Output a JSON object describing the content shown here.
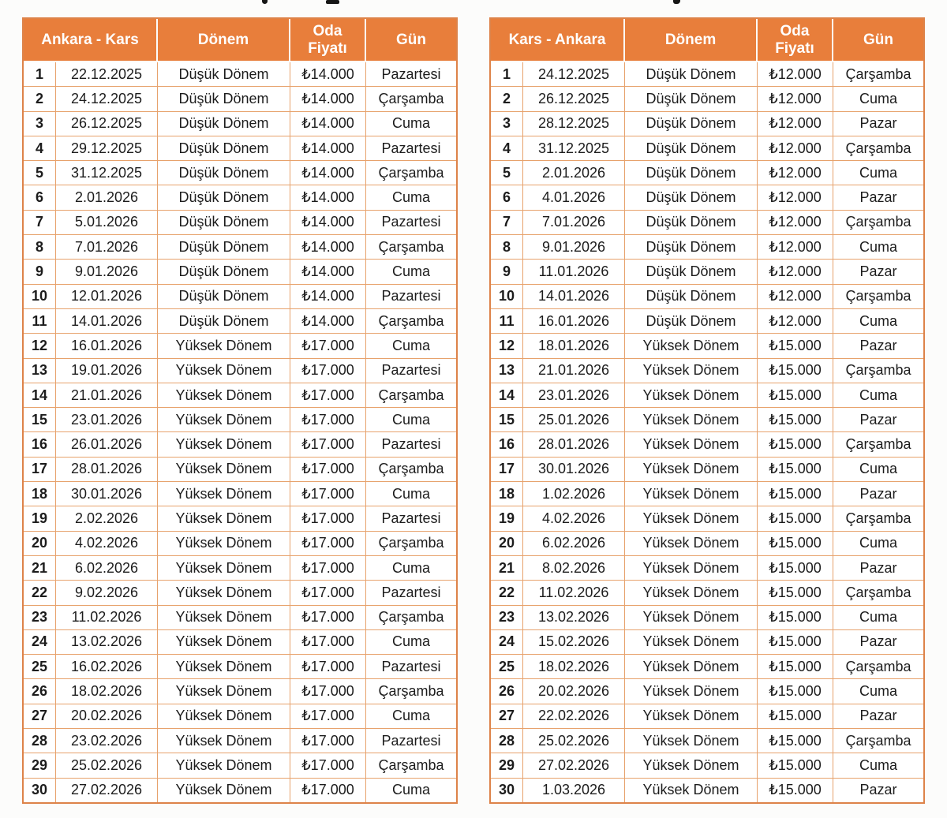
{
  "colors": {
    "header_bg": "#E87E3B",
    "header_text": "#FFFFFF",
    "outer_border": "#DD8349",
    "cell_border": "#E7A26C",
    "body_text": "#1C1C1C",
    "page_bg": "#FCFCFB"
  },
  "chart_data": [
    {
      "type": "table",
      "title": "Ankara - Kars",
      "headers": {
        "route": "Ankara - Kars",
        "period": "Dönem",
        "price": "Oda\nFiyatı",
        "day": "Gün"
      },
      "rows": [
        {
          "no": "1",
          "date": "22.12.2025",
          "period": "Düşük Dönem",
          "price": "₺14.000",
          "day": "Pazartesi"
        },
        {
          "no": "2",
          "date": "24.12.2025",
          "period": "Düşük Dönem",
          "price": "₺14.000",
          "day": "Çarşamba"
        },
        {
          "no": "3",
          "date": "26.12.2025",
          "period": "Düşük Dönem",
          "price": "₺14.000",
          "day": "Cuma"
        },
        {
          "no": "4",
          "date": "29.12.2025",
          "period": "Düşük Dönem",
          "price": "₺14.000",
          "day": "Pazartesi"
        },
        {
          "no": "5",
          "date": "31.12.2025",
          "period": "Düşük Dönem",
          "price": "₺14.000",
          "day": "Çarşamba"
        },
        {
          "no": "6",
          "date": "2.01.2026",
          "period": "Düşük Dönem",
          "price": "₺14.000",
          "day": "Cuma"
        },
        {
          "no": "7",
          "date": "5.01.2026",
          "period": "Düşük Dönem",
          "price": "₺14.000",
          "day": "Pazartesi"
        },
        {
          "no": "8",
          "date": "7.01.2026",
          "period": "Düşük Dönem",
          "price": "₺14.000",
          "day": "Çarşamba"
        },
        {
          "no": "9",
          "date": "9.01.2026",
          "period": "Düşük Dönem",
          "price": "₺14.000",
          "day": "Cuma"
        },
        {
          "no": "10",
          "date": "12.01.2026",
          "period": "Düşük Dönem",
          "price": "₺14.000",
          "day": "Pazartesi"
        },
        {
          "no": "11",
          "date": "14.01.2026",
          "period": "Düşük Dönem",
          "price": "₺14.000",
          "day": "Çarşamba"
        },
        {
          "no": "12",
          "date": "16.01.2026",
          "period": "Yüksek Dönem",
          "price": "₺17.000",
          "day": "Cuma"
        },
        {
          "no": "13",
          "date": "19.01.2026",
          "period": "Yüksek Dönem",
          "price": "₺17.000",
          "day": "Pazartesi"
        },
        {
          "no": "14",
          "date": "21.01.2026",
          "period": "Yüksek Dönem",
          "price": "₺17.000",
          "day": "Çarşamba"
        },
        {
          "no": "15",
          "date": "23.01.2026",
          "period": "Yüksek Dönem",
          "price": "₺17.000",
          "day": "Cuma"
        },
        {
          "no": "16",
          "date": "26.01.2026",
          "period": "Yüksek Dönem",
          "price": "₺17.000",
          "day": "Pazartesi"
        },
        {
          "no": "17",
          "date": "28.01.2026",
          "period": "Yüksek Dönem",
          "price": "₺17.000",
          "day": "Çarşamba"
        },
        {
          "no": "18",
          "date": "30.01.2026",
          "period": "Yüksek Dönem",
          "price": "₺17.000",
          "day": "Cuma"
        },
        {
          "no": "19",
          "date": "2.02.2026",
          "period": "Yüksek Dönem",
          "price": "₺17.000",
          "day": "Pazartesi"
        },
        {
          "no": "20",
          "date": "4.02.2026",
          "period": "Yüksek Dönem",
          "price": "₺17.000",
          "day": "Çarşamba"
        },
        {
          "no": "21",
          "date": "6.02.2026",
          "period": "Yüksek Dönem",
          "price": "₺17.000",
          "day": "Cuma"
        },
        {
          "no": "22",
          "date": "9.02.2026",
          "period": "Yüksek Dönem",
          "price": "₺17.000",
          "day": "Pazartesi"
        },
        {
          "no": "23",
          "date": "11.02.2026",
          "period": "Yüksek Dönem",
          "price": "₺17.000",
          "day": "Çarşamba"
        },
        {
          "no": "24",
          "date": "13.02.2026",
          "period": "Yüksek Dönem",
          "price": "₺17.000",
          "day": "Cuma"
        },
        {
          "no": "25",
          "date": "16.02.2026",
          "period": "Yüksek Dönem",
          "price": "₺17.000",
          "day": "Pazartesi"
        },
        {
          "no": "26",
          "date": "18.02.2026",
          "period": "Yüksek Dönem",
          "price": "₺17.000",
          "day": "Çarşamba"
        },
        {
          "no": "27",
          "date": "20.02.2026",
          "period": "Yüksek Dönem",
          "price": "₺17.000",
          "day": "Cuma"
        },
        {
          "no": "28",
          "date": "23.02.2026",
          "period": "Yüksek Dönem",
          "price": "₺17.000",
          "day": "Pazartesi"
        },
        {
          "no": "29",
          "date": "25.02.2026",
          "period": "Yüksek Dönem",
          "price": "₺17.000",
          "day": "Çarşamba"
        },
        {
          "no": "30",
          "date": "27.02.2026",
          "period": "Yüksek Dönem",
          "price": "₺17.000",
          "day": "Cuma"
        }
      ]
    },
    {
      "type": "table",
      "title": "Kars - Ankara",
      "headers": {
        "route": "Kars - Ankara",
        "period": "Dönem",
        "price": "Oda\nFiyatı",
        "day": "Gün"
      },
      "rows": [
        {
          "no": "1",
          "date": "24.12.2025",
          "period": "Düşük Dönem",
          "price": "₺12.000",
          "day": "Çarşamba"
        },
        {
          "no": "2",
          "date": "26.12.2025",
          "period": "Düşük Dönem",
          "price": "₺12.000",
          "day": "Cuma"
        },
        {
          "no": "3",
          "date": "28.12.2025",
          "period": "Düşük Dönem",
          "price": "₺12.000",
          "day": "Pazar"
        },
        {
          "no": "4",
          "date": "31.12.2025",
          "period": "Düşük Dönem",
          "price": "₺12.000",
          "day": "Çarşamba"
        },
        {
          "no": "5",
          "date": "2.01.2026",
          "period": "Düşük Dönem",
          "price": "₺12.000",
          "day": "Cuma"
        },
        {
          "no": "6",
          "date": "4.01.2026",
          "period": "Düşük Dönem",
          "price": "₺12.000",
          "day": "Pazar"
        },
        {
          "no": "7",
          "date": "7.01.2026",
          "period": "Düşük Dönem",
          "price": "₺12.000",
          "day": "Çarşamba"
        },
        {
          "no": "8",
          "date": "9.01.2026",
          "period": "Düşük Dönem",
          "price": "₺12.000",
          "day": "Cuma"
        },
        {
          "no": "9",
          "date": "11.01.2026",
          "period": "Düşük Dönem",
          "price": "₺12.000",
          "day": "Pazar"
        },
        {
          "no": "10",
          "date": "14.01.2026",
          "period": "Düşük Dönem",
          "price": "₺12.000",
          "day": "Çarşamba"
        },
        {
          "no": "11",
          "date": "16.01.2026",
          "period": "Düşük Dönem",
          "price": "₺12.000",
          "day": "Cuma"
        },
        {
          "no": "12",
          "date": "18.01.2026",
          "period": "Yüksek Dönem",
          "price": "₺15.000",
          "day": "Pazar"
        },
        {
          "no": "13",
          "date": "21.01.2026",
          "period": "Yüksek Dönem",
          "price": "₺15.000",
          "day": "Çarşamba"
        },
        {
          "no": "14",
          "date": "23.01.2026",
          "period": "Yüksek Dönem",
          "price": "₺15.000",
          "day": "Cuma"
        },
        {
          "no": "15",
          "date": "25.01.2026",
          "period": "Yüksek Dönem",
          "price": "₺15.000",
          "day": "Pazar"
        },
        {
          "no": "16",
          "date": "28.01.2026",
          "period": "Yüksek Dönem",
          "price": "₺15.000",
          "day": "Çarşamba"
        },
        {
          "no": "17",
          "date": "30.01.2026",
          "period": "Yüksek Dönem",
          "price": "₺15.000",
          "day": "Cuma"
        },
        {
          "no": "18",
          "date": "1.02.2026",
          "period": "Yüksek Dönem",
          "price": "₺15.000",
          "day": "Pazar"
        },
        {
          "no": "19",
          "date": "4.02.2026",
          "period": "Yüksek Dönem",
          "price": "₺15.000",
          "day": "Çarşamba"
        },
        {
          "no": "20",
          "date": "6.02.2026",
          "period": "Yüksek Dönem",
          "price": "₺15.000",
          "day": "Cuma"
        },
        {
          "no": "21",
          "date": "8.02.2026",
          "period": "Yüksek Dönem",
          "price": "₺15.000",
          "day": "Pazar"
        },
        {
          "no": "22",
          "date": "11.02.2026",
          "period": "Yüksek Dönem",
          "price": "₺15.000",
          "day": "Çarşamba"
        },
        {
          "no": "23",
          "date": "13.02.2026",
          "period": "Yüksek Dönem",
          "price": "₺15.000",
          "day": "Cuma"
        },
        {
          "no": "24",
          "date": "15.02.2026",
          "period": "Yüksek Dönem",
          "price": "₺15.000",
          "day": "Pazar"
        },
        {
          "no": "25",
          "date": "18.02.2026",
          "period": "Yüksek Dönem",
          "price": "₺15.000",
          "day": "Çarşamba"
        },
        {
          "no": "26",
          "date": "20.02.2026",
          "period": "Yüksek Dönem",
          "price": "₺15.000",
          "day": "Cuma"
        },
        {
          "no": "27",
          "date": "22.02.2026",
          "period": "Yüksek Dönem",
          "price": "₺15.000",
          "day": "Pazar"
        },
        {
          "no": "28",
          "date": "25.02.2026",
          "period": "Yüksek Dönem",
          "price": "₺15.000",
          "day": "Çarşamba"
        },
        {
          "no": "29",
          "date": "27.02.2026",
          "period": "Yüksek Dönem",
          "price": "₺15.000",
          "day": "Cuma"
        },
        {
          "no": "30",
          "date": "1.03.2026",
          "period": "Yüksek Dönem",
          "price": "₺15.000",
          "day": "Pazar"
        }
      ]
    }
  ]
}
